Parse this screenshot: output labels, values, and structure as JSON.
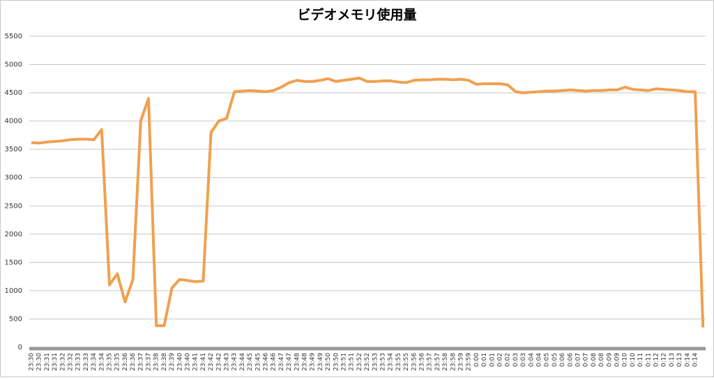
{
  "chart_data": {
    "type": "line",
    "title": "ビデオメモリ使用量",
    "categories": [
      "23:30",
      "23:30",
      "23:31",
      "23:31",
      "23:32",
      "23:32",
      "23:33",
      "23:33",
      "23:34",
      "23:34",
      "23:35",
      "23:35",
      "23:36",
      "23:36",
      "23:37",
      "23:37",
      "23:38",
      "23:38",
      "23:39",
      "23:40",
      "23:40",
      "23:41",
      "23:41",
      "23:42",
      "23:42",
      "23:43",
      "23:43",
      "23:44",
      "23:45",
      "23:45",
      "23:46",
      "23:46",
      "23:47",
      "23:47",
      "23:48",
      "23:48",
      "23:49",
      "23:49",
      "23:50",
      "23:50",
      "23:51",
      "23:51",
      "23:52",
      "23:52",
      "23:53",
      "23:53",
      "23:54",
      "23:55",
      "23:55",
      "23:56",
      "23:56",
      "23:57",
      "23:57",
      "23:58",
      "23:58",
      "23:59",
      "23:59",
      "0:00",
      "0:01",
      "0:01",
      "0:02",
      "0:02",
      "0:03",
      "0:03",
      "0:04",
      "0:04",
      "0:05",
      "0:05",
      "0:06",
      "0:06",
      "0:07",
      "0:07",
      "0:08",
      "0:08",
      "0:09",
      "0:09",
      "0:10",
      "0:10",
      "0:11",
      "0:11",
      "0:12",
      "0:12",
      "0:13",
      "0:13",
      "0:14",
      "0:14",
      null
    ],
    "values": [
      3620,
      3610,
      3630,
      3640,
      3650,
      3670,
      3680,
      3680,
      3670,
      3850,
      1100,
      1300,
      800,
      1200,
      4000,
      4400,
      380,
      380,
      1050,
      1200,
      1180,
      1160,
      1170,
      3800,
      4000,
      4050,
      4520,
      4530,
      4540,
      4530,
      4520,
      4540,
      4600,
      4680,
      4720,
      4700,
      4700,
      4720,
      4750,
      4700,
      4720,
      4740,
      4760,
      4700,
      4700,
      4710,
      4710,
      4690,
      4680,
      4720,
      4730,
      4730,
      4740,
      4740,
      4730,
      4740,
      4720,
      4650,
      4660,
      4660,
      4660,
      4640,
      4520,
      4500,
      4510,
      4520,
      4530,
      4530,
      4540,
      4550,
      4540,
      4530,
      4540,
      4540,
      4550,
      4550,
      4600,
      4560,
      4550,
      4540,
      4570,
      4560,
      4550,
      4540,
      4520,
      4520,
      350
    ],
    "color": "#f0a050",
    "ylim": [
      0,
      5500
    ],
    "yticks": [
      0,
      500,
      1000,
      1500,
      2000,
      2500,
      3000,
      3500,
      4000,
      4500,
      5000,
      5500
    ],
    "grid": true
  }
}
